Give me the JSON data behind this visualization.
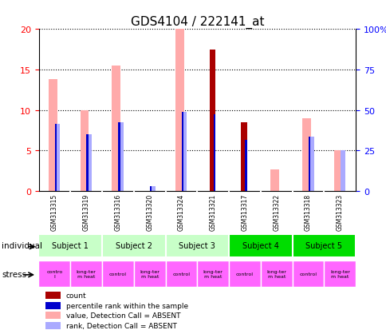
{
  "title": "GDS4104 / 222141_at",
  "samples": [
    "GSM313315",
    "GSM313319",
    "GSM313316",
    "GSM313320",
    "GSM313324",
    "GSM313321",
    "GSM313317",
    "GSM313322",
    "GSM313318",
    "GSM313323"
  ],
  "count_values": [
    0,
    0,
    0,
    0,
    0,
    17.5,
    8.5,
    0,
    0,
    0
  ],
  "percentile_values": [
    8.3,
    7.0,
    8.5,
    0.6,
    9.8,
    9.5,
    6.3,
    0,
    6.7,
    0
  ],
  "absent_value_bars": [
    13.8,
    10.0,
    15.5,
    0,
    20.0,
    0,
    0,
    2.7,
    9.0,
    5.0
  ],
  "absent_rank_bars": [
    8.3,
    7.0,
    8.5,
    0.6,
    9.8,
    0,
    0,
    0,
    6.7,
    5.0
  ],
  "ylim_left": [
    0,
    20
  ],
  "ylim_right": [
    0,
    100
  ],
  "yticks_left": [
    0,
    5,
    10,
    15,
    20
  ],
  "yticks_right": [
    0,
    25,
    50,
    75,
    100
  ],
  "yticklabels_right": [
    "0",
    "25",
    "50",
    "75",
    "100%"
  ],
  "bar_width": 0.18,
  "subjects": [
    {
      "label": "Subject 1",
      "cols": [
        0,
        1
      ],
      "color": "#c8ffc8"
    },
    {
      "label": "Subject 2",
      "cols": [
        2,
        3
      ],
      "color": "#c8ffc8"
    },
    {
      "label": "Subject 3",
      "cols": [
        4,
        5
      ],
      "color": "#c8ffc8"
    },
    {
      "label": "Subject 4",
      "cols": [
        6,
        7
      ],
      "color": "#00dd00"
    },
    {
      "label": "Subject 5",
      "cols": [
        8,
        9
      ],
      "color": "#00dd00"
    }
  ],
  "stress_labels": [
    "contro\nl",
    "long-ter\nm heat",
    "control",
    "long-ter\nm heat",
    "control",
    "long-ter\nm heat",
    "control",
    "long-ter\nm heat",
    "control",
    "long-ter\nm heat"
  ],
  "color_count": "#aa0000",
  "color_percentile": "#0000cc",
  "color_absent_value": "#ffaaaa",
  "color_absent_rank": "#aaaaff",
  "bg_color": "#ffffff",
  "sample_bg": "#d0d0d0",
  "stress_color": "#ff66ff"
}
